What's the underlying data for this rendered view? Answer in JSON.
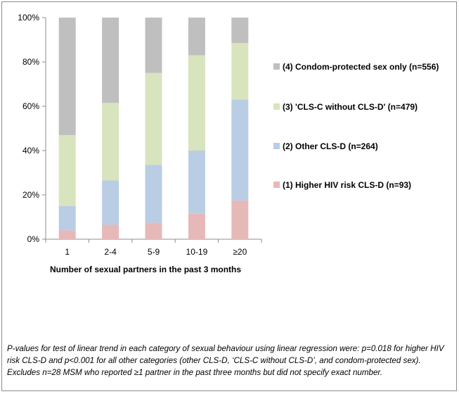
{
  "chart_data": {
    "type": "bar",
    "stacked": true,
    "categories": [
      "1",
      "2-4",
      "5-9",
      "10-19",
      "≥20"
    ],
    "xlabel": "Number of sexual partners in the past 3 months",
    "ylabel": "",
    "ylim": [
      0,
      100
    ],
    "y_ticks": [
      "0%",
      "20%",
      "40%",
      "60%",
      "80%",
      "100%"
    ],
    "grid": false,
    "legend_position": "right",
    "series": [
      {
        "name": "(1) Higher HIV risk CLS-D (n=93)",
        "color": "#e6b9b8",
        "values": [
          4,
          6.5,
          7.5,
          11.5,
          17.5
        ]
      },
      {
        "name": "(2) Other CLS-D (n=264)",
        "color": "#b9cde5",
        "values": [
          11,
          20,
          26,
          28.5,
          45.5
        ]
      },
      {
        "name": "(3) 'CLS-C without CLS-D' (n=479)",
        "color": "#d7e4bd",
        "values": [
          32,
          35,
          41.5,
          43,
          25.5
        ]
      },
      {
        "name": "(4) Condom-protected sex only (n=556)",
        "color": "#bfbfbf",
        "values": [
          53,
          38.5,
          25,
          17,
          11.5
        ]
      }
    ]
  },
  "footnote": "P-values for test of linear trend in each category of sexual behaviour using linear regression were: p=0.018 for higher HIV risk CLS-D and p<0.001 for all other categories (other CLS-D, ‘CLS-C without CLS-D’, and condom-protected  sex). Excludes n=28 MSM who reported ≥1 partner in the past three months but did not specify exact number."
}
